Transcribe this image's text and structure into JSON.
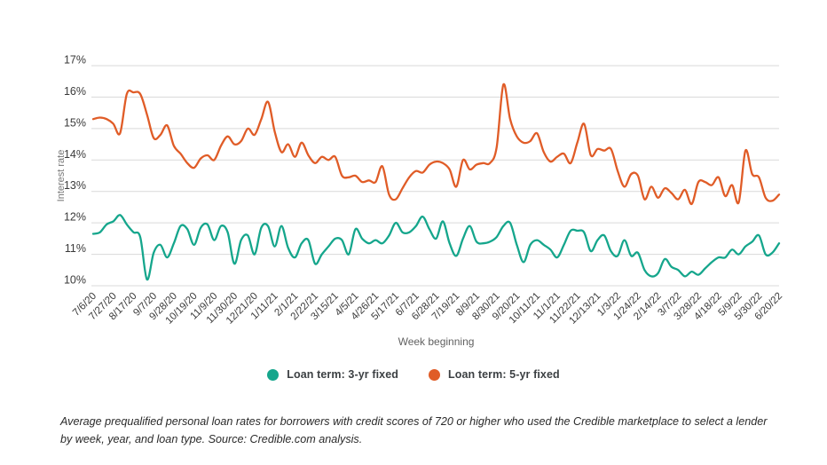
{
  "figure": {
    "caption": "Average prequalified personal loan rates for borrowers with credit scores of 720 or higher who used the Credible marketplace to select a lender by week, year, and loan type. Source: Credible.com analysis."
  },
  "chart_data": {
    "type": "line",
    "title": "",
    "xlabel": "Week beginning",
    "ylabel": "Interest rate",
    "ylim": [
      10,
      17
    ],
    "y_tick_step": 1,
    "y_tick_suffix": "%",
    "grid": true,
    "legend_position": "bottom",
    "x_tick_every_n_points": 3,
    "x_tick_labels": [
      "7/6/20",
      "7/27/20",
      "8/17/20",
      "9/7/20",
      "9/28/20",
      "10/19/20",
      "11/9/20",
      "11/30/20",
      "12/21/20",
      "1/11/21",
      "2/1/21",
      "2/22/21",
      "3/15/21",
      "4/5/21",
      "4/26/21",
      "5/17/21",
      "6/7/21",
      "6/28/21",
      "7/19/21",
      "8/9/21",
      "8/30/21",
      "9/20/21",
      "10/11/21",
      "11/1/21",
      "11/22/21",
      "12/13/21",
      "1/3/22",
      "1/24/22",
      "2/14/22",
      "3/7/22",
      "3/28/22",
      "4/18/22",
      "5/9/22",
      "5/30/22",
      "6/20/22"
    ],
    "series": [
      {
        "name": "Loan term: 3-yr fixed",
        "color": "#15a68c",
        "values": [
          11.65,
          11.7,
          11.95,
          12.05,
          12.25,
          11.95,
          11.7,
          11.55,
          10.2,
          11.05,
          11.3,
          10.9,
          11.35,
          11.9,
          11.8,
          11.3,
          11.85,
          11.95,
          11.45,
          11.9,
          11.7,
          10.7,
          11.45,
          11.6,
          11.0,
          11.85,
          11.9,
          11.25,
          11.9,
          11.2,
          10.9,
          11.35,
          11.45,
          10.7,
          11.0,
          11.25,
          11.5,
          11.45,
          11.0,
          11.8,
          11.5,
          11.35,
          11.45,
          11.35,
          11.6,
          12.0,
          11.7,
          11.7,
          11.9,
          12.2,
          11.8,
          11.5,
          12.05,
          11.35,
          10.95,
          11.5,
          11.9,
          11.4,
          11.35,
          11.4,
          11.55,
          11.9,
          12.0,
          11.3,
          10.75,
          11.3,
          11.45,
          11.3,
          11.15,
          10.9,
          11.3,
          11.75,
          11.75,
          11.7,
          11.1,
          11.45,
          11.6,
          11.1,
          10.95,
          11.45,
          10.95,
          11.05,
          10.5,
          10.3,
          10.4,
          10.85,
          10.6,
          10.5,
          10.3,
          10.45,
          10.35,
          10.55,
          10.75,
          10.9,
          10.9,
          11.15,
          11.0,
          11.25,
          11.4,
          11.6,
          11.0,
          11.05,
          11.35
        ]
      },
      {
        "name": "Loan term: 5-yr fixed",
        "color": "#e05c27",
        "values": [
          15.3,
          15.35,
          15.3,
          15.15,
          14.85,
          16.1,
          16.15,
          16.1,
          15.45,
          14.7,
          14.8,
          15.1,
          14.45,
          14.2,
          13.9,
          13.75,
          14.05,
          14.15,
          14.0,
          14.45,
          14.75,
          14.5,
          14.6,
          15.0,
          14.8,
          15.3,
          15.85,
          14.9,
          14.25,
          14.5,
          14.1,
          14.55,
          14.15,
          13.9,
          14.1,
          14.0,
          14.1,
          13.5,
          13.45,
          13.5,
          13.3,
          13.35,
          13.3,
          13.8,
          12.9,
          12.75,
          13.1,
          13.45,
          13.65,
          13.6,
          13.85,
          13.95,
          13.9,
          13.7,
          13.15,
          14.0,
          13.7,
          13.85,
          13.9,
          13.9,
          14.4,
          16.4,
          15.3,
          14.75,
          14.55,
          14.6,
          14.85,
          14.25,
          13.95,
          14.1,
          14.2,
          13.9,
          14.55,
          15.15,
          14.15,
          14.35,
          14.3,
          14.35,
          13.65,
          13.15,
          13.55,
          13.5,
          12.75,
          13.15,
          12.8,
          13.1,
          12.95,
          12.75,
          13.05,
          12.6,
          13.3,
          13.3,
          13.2,
          13.45,
          12.85,
          13.2,
          12.65,
          14.3,
          13.55,
          13.45,
          12.8,
          12.7,
          12.9
        ]
      }
    ]
  }
}
